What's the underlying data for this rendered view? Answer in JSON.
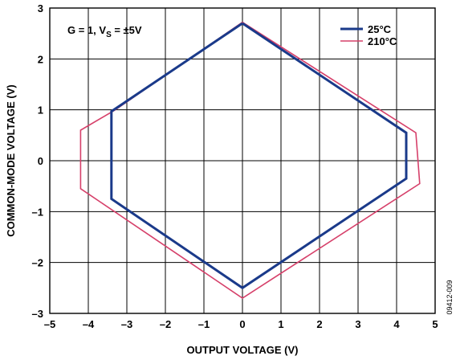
{
  "chart_data": {
    "type": "line",
    "xlabel": "OUTPUT VOLTAGE (V)",
    "ylabel": "COMMON-MODE VOLTAGE (V)",
    "xlim": [
      -5,
      5
    ],
    "ylim": [
      -3,
      3
    ],
    "x_ticks": [
      "–5",
      "–4",
      "–3",
      "–2",
      "–1",
      "0",
      "1",
      "2",
      "3",
      "4",
      "5"
    ],
    "y_ticks": [
      "–3",
      "–2",
      "–1",
      "0",
      "1",
      "2",
      "3"
    ],
    "grid": true,
    "legend_position": "top-right",
    "annotation": {
      "prefix": "G = 1, V",
      "subscript": "S",
      "suffix": " = ±5V"
    },
    "figure_id": "09412-009",
    "series": [
      {
        "name": "25°C",
        "color": "#1a3a8a",
        "points": [
          {
            "x": 0.0,
            "y": 2.7
          },
          {
            "x": 4.25,
            "y": 0.55
          },
          {
            "x": 4.25,
            "y": -0.35
          },
          {
            "x": 0.0,
            "y": -2.5
          },
          {
            "x": -3.4,
            "y": -0.75
          },
          {
            "x": -3.4,
            "y": 0.97
          },
          {
            "x": 0.0,
            "y": 2.7
          }
        ]
      },
      {
        "name": "210°C",
        "color": "#d6406a",
        "points": [
          {
            "x": 0.0,
            "y": 2.72
          },
          {
            "x": 4.5,
            "y": 0.55
          },
          {
            "x": 4.6,
            "y": -0.45
          },
          {
            "x": 0.0,
            "y": -2.7
          },
          {
            "x": -4.2,
            "y": -0.55
          },
          {
            "x": -4.2,
            "y": 0.6
          },
          {
            "x": -3.3,
            "y": 1.0
          },
          {
            "x": 0.0,
            "y": 2.72
          }
        ]
      }
    ]
  }
}
